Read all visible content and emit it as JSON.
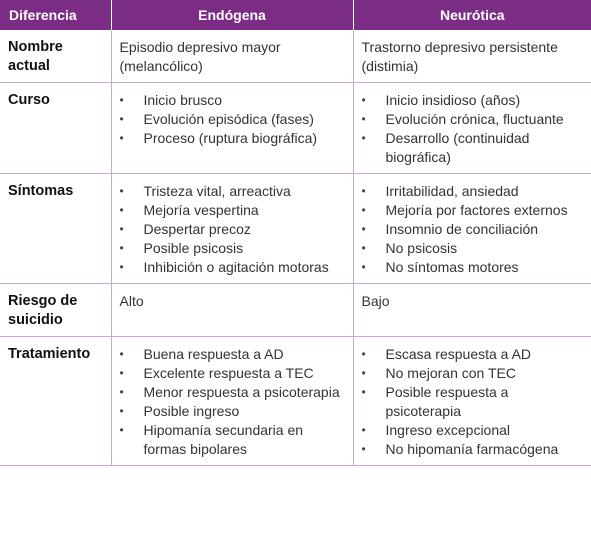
{
  "headers": [
    "Diferencia",
    "Endógena",
    "Neurótica"
  ],
  "rows": [
    {
      "label": "Nombre actual",
      "endogena_text": "Episodio depresivo mayor (melancólico)",
      "neurotica_text": "Trastorno depresivo persistente (distimia)"
    },
    {
      "label": "Curso",
      "endogena": [
        "Inicio brusco",
        "Evolución episódica (fases)",
        "Proceso (ruptura biográfica)"
      ],
      "neurotica": [
        "Inicio insidioso (años)",
        "Evolución crónica, fluctuante",
        "Desarrollo (continuidad biográfica)"
      ]
    },
    {
      "label": "Síntomas",
      "endogena": [
        "Tristeza vital, arreactiva",
        "Mejoría vespertina",
        "Despertar precoz",
        "Posible psicosis",
        "Inhibición o agitación motoras"
      ],
      "neurotica": [
        "Irritabilidad, ansiedad",
        "Mejoría por factores externos",
        "Insomnio de conciliación",
        "No psicosis",
        "No síntomas motores"
      ]
    },
    {
      "label": "Riesgo de suicidio",
      "endogena_text": "Alto",
      "neurotica_text": "Bajo"
    },
    {
      "label": "Tratamiento",
      "endogena": [
        "Buena respuesta a AD",
        "Excelente respuesta a TEC",
        "Menor respuesta a psicoterapia",
        "Posible ingreso",
        "Hipomanía secundaria en formas bipolares"
      ],
      "neurotica": [
        "Escasa respuesta a AD",
        "No mejoran con TEC",
        "Posible respuesta a psicoterapia",
        "Ingreso excepcional",
        "No hipomanía farmacógena"
      ]
    }
  ]
}
